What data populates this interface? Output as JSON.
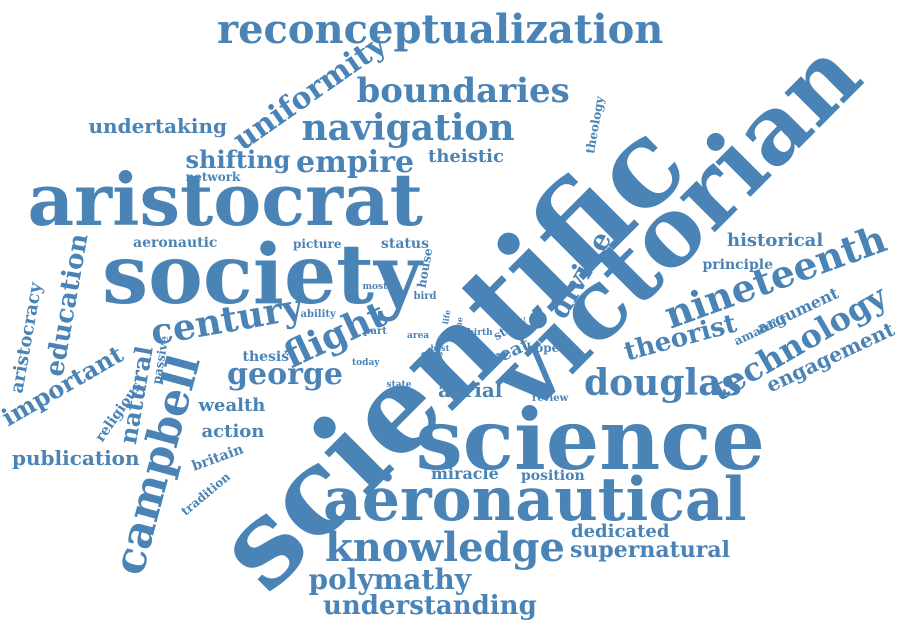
{
  "color": "#4a83b5",
  "background": "#ffffff",
  "words": [
    {
      "text": "scientific"
    },
    {
      "text": "victorian"
    },
    {
      "text": "science"
    },
    {
      "text": "society"
    },
    {
      "text": "aristocrat"
    },
    {
      "text": "aëronautical"
    },
    {
      "text": "reconceptualization"
    },
    {
      "text": "knowledge"
    },
    {
      "text": "campbell"
    },
    {
      "text": "nineteenth"
    },
    {
      "text": "navigation"
    },
    {
      "text": "century"
    },
    {
      "text": "boundaries"
    },
    {
      "text": "douglas"
    },
    {
      "text": "technology"
    },
    {
      "text": "flight"
    },
    {
      "text": "george"
    },
    {
      "text": "uniformity"
    },
    {
      "text": "empire"
    },
    {
      "text": "polymathy"
    },
    {
      "text": "understanding"
    },
    {
      "text": "divine"
    },
    {
      "text": "theorist"
    },
    {
      "text": "shifting"
    },
    {
      "text": "supernatural"
    },
    {
      "text": "education"
    },
    {
      "text": "important"
    },
    {
      "text": "natural"
    },
    {
      "text": "engagement"
    },
    {
      "text": "undertaking"
    },
    {
      "text": "publication"
    },
    {
      "text": "aristocracy"
    },
    {
      "text": "historical"
    },
    {
      "text": "argument"
    },
    {
      "text": "dedicated"
    },
    {
      "text": "theistic"
    },
    {
      "text": "action"
    },
    {
      "text": "aerial"
    },
    {
      "text": "wealth"
    },
    {
      "text": "miracle"
    },
    {
      "text": "great"
    },
    {
      "text": "principle"
    },
    {
      "text": "aeronautic"
    },
    {
      "text": "thesis"
    },
    {
      "text": "britain"
    },
    {
      "text": "position"
    },
    {
      "text": "status"
    },
    {
      "text": "network"
    },
    {
      "text": "picture"
    },
    {
      "text": "religious"
    },
    {
      "text": "tradition"
    },
    {
      "text": "passive"
    },
    {
      "text": "hope"
    },
    {
      "text": "study"
    },
    {
      "text": "theology"
    },
    {
      "text": "amateur"
    },
    {
      "text": "house"
    },
    {
      "text": "ability"
    },
    {
      "text": "part"
    },
    {
      "text": "bird"
    },
    {
      "text": "most"
    },
    {
      "text": "today"
    },
    {
      "text": "state"
    },
    {
      "text": "review"
    },
    {
      "text": "case"
    },
    {
      "text": "area"
    },
    {
      "text": "best"
    },
    {
      "text": "life"
    },
    {
      "text": "time"
    },
    {
      "text": "birth"
    }
  ]
}
